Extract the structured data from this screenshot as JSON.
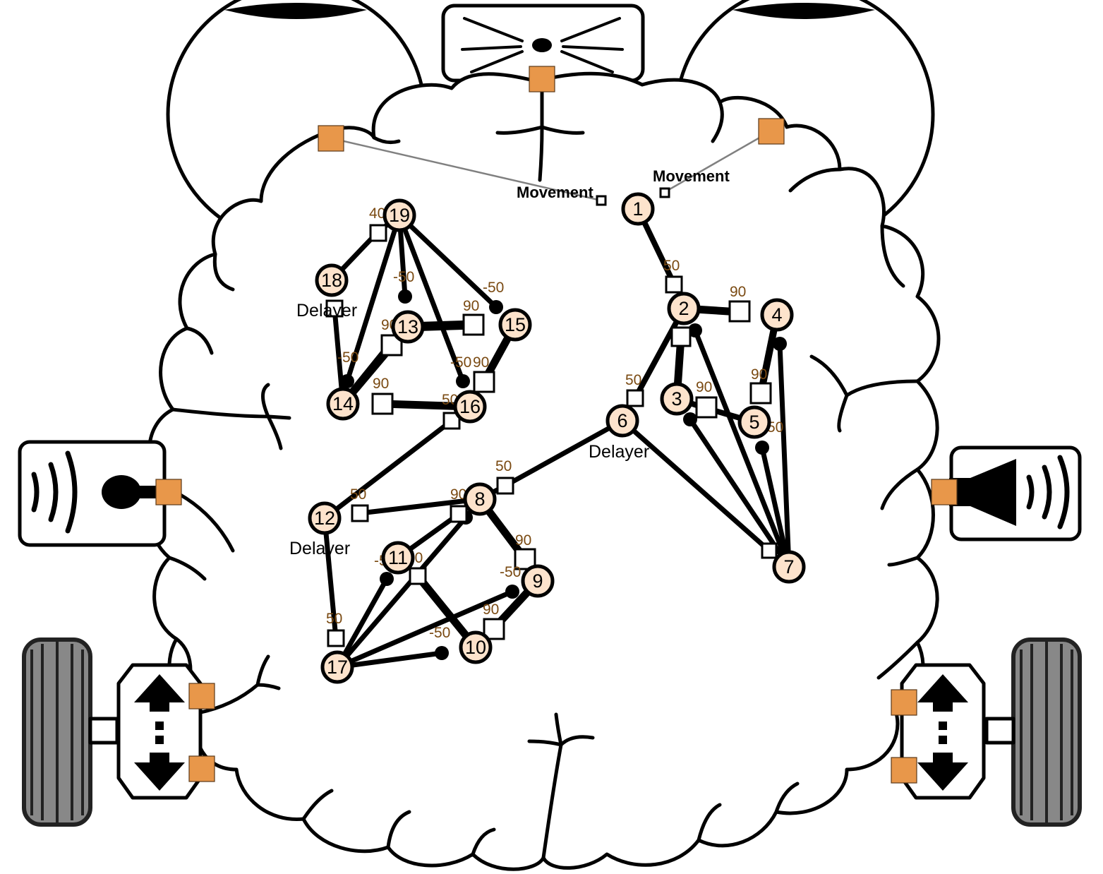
{
  "labels": {
    "movement_left": "Movement",
    "movement_right": "Movement",
    "delayer_a": "Delayer",
    "delayer_b": "Delayer",
    "delayer_c": "Delayer"
  },
  "nodes": [
    "1",
    "2",
    "3",
    "4",
    "5",
    "6",
    "7",
    "8",
    "9",
    "10",
    "11",
    "12",
    "13",
    "14",
    "15",
    "16",
    "17",
    "18",
    "19"
  ],
  "weights": [
    "50",
    "90",
    "90",
    "50",
    "90",
    "90",
    "-50",
    "50",
    "90",
    "-50",
    "50",
    "90",
    "-50",
    "90",
    "-50",
    "50",
    "90",
    "-50",
    "90",
    "-50",
    "-50",
    "90",
    "40",
    "-50",
    "50",
    "90"
  ],
  "colors": {
    "node_fill": "#fde3cc",
    "port": "#e8974a",
    "weight_text": "#7a4a12"
  },
  "icons": [
    "brain-outline-icon",
    "eye-icon",
    "whisker-sensor-icon",
    "microphone-icon",
    "speaker-icon",
    "wheel-icon",
    "direction-arrows-icon"
  ]
}
